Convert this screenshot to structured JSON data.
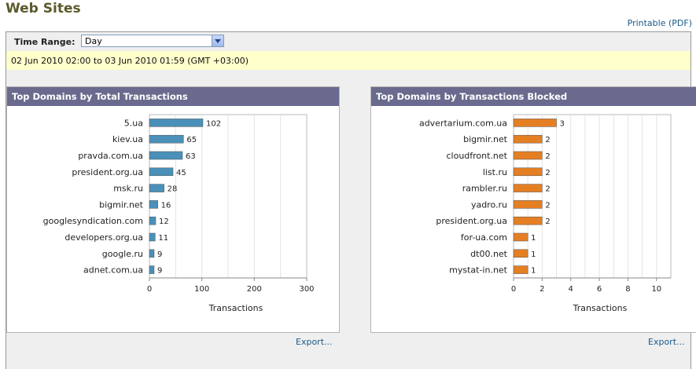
{
  "page": {
    "title": "Web Sites",
    "printable": "Printable (PDF)"
  },
  "time_range": {
    "label": "Time Range:",
    "selected": "Day"
  },
  "date_range": "02 Jun 2010 02:00 to 03 Jun 2010 01:59 (GMT +03:00)",
  "panels": {
    "left": {
      "title": "Top Domains by Total Transactions",
      "export": "Export..."
    },
    "right": {
      "title": "Top Domains by Transactions Blocked",
      "export": "Export..."
    }
  },
  "chart_data": [
    {
      "type": "bar",
      "orientation": "horizontal",
      "title": "Top Domains by Total Transactions",
      "categories": [
        "5.ua",
        "kiev.ua",
        "pravda.com.ua",
        "president.org.ua",
        "msk.ru",
        "bigmir.net",
        "googlesyndication.com",
        "developers.org.ua",
        "google.ru",
        "adnet.com.ua"
      ],
      "values": [
        102,
        65,
        63,
        45,
        28,
        16,
        12,
        11,
        9,
        9
      ],
      "xlabel": "Transactions",
      "xlim": [
        0,
        300
      ],
      "ticks": [
        0,
        100,
        200,
        300
      ],
      "color": "#4a90b8",
      "grid": true
    },
    {
      "type": "bar",
      "orientation": "horizontal",
      "title": "Top Domains by Transactions Blocked",
      "categories": [
        "advertarium.com.ua",
        "bigmir.net",
        "cloudfront.net",
        "list.ru",
        "rambler.ru",
        "yadro.ru",
        "president.org.ua",
        "for-ua.com",
        "dt00.net",
        "mystat-in.net"
      ],
      "values": [
        3,
        2,
        2,
        2,
        2,
        2,
        2,
        1,
        1,
        1
      ],
      "xlabel": "Transactions",
      "xlim": [
        0,
        11
      ],
      "ticks": [
        0,
        2,
        4,
        6,
        8,
        10
      ],
      "color": "#e57f24",
      "grid": true
    }
  ]
}
